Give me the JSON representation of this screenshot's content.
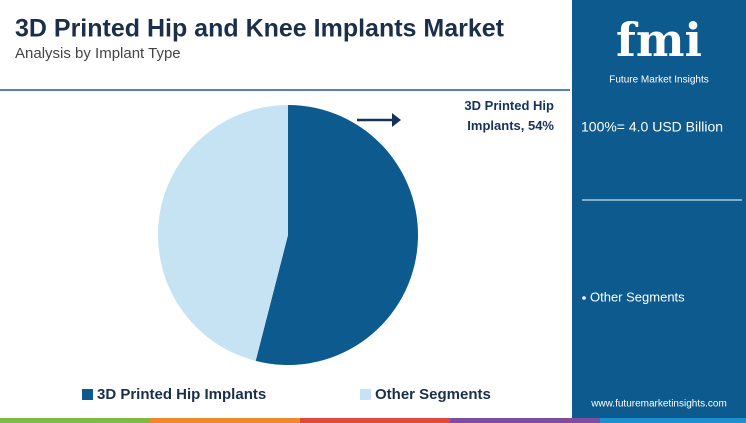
{
  "chart_data": {
    "type": "pie",
    "title": "3D Printed Hip and Knee Implants Market",
    "subtitle": "Analysis by Implant Type",
    "categories": [
      "3D Printed Hip Implants",
      "Other Segments"
    ],
    "values": [
      54,
      46
    ],
    "value_labels": [
      "3D Printed Hip Implants, 54%",
      null
    ],
    "colors": [
      "#0d5a8f",
      "#c6e3f3"
    ],
    "legend": "bottom"
  },
  "sidebar": {
    "logo": "fmi",
    "brand": "Future Market Insights",
    "total": "100%= 4.0 USD Billion",
    "note": "Other Segments",
    "url": "www.futuremarketinsights.com"
  }
}
